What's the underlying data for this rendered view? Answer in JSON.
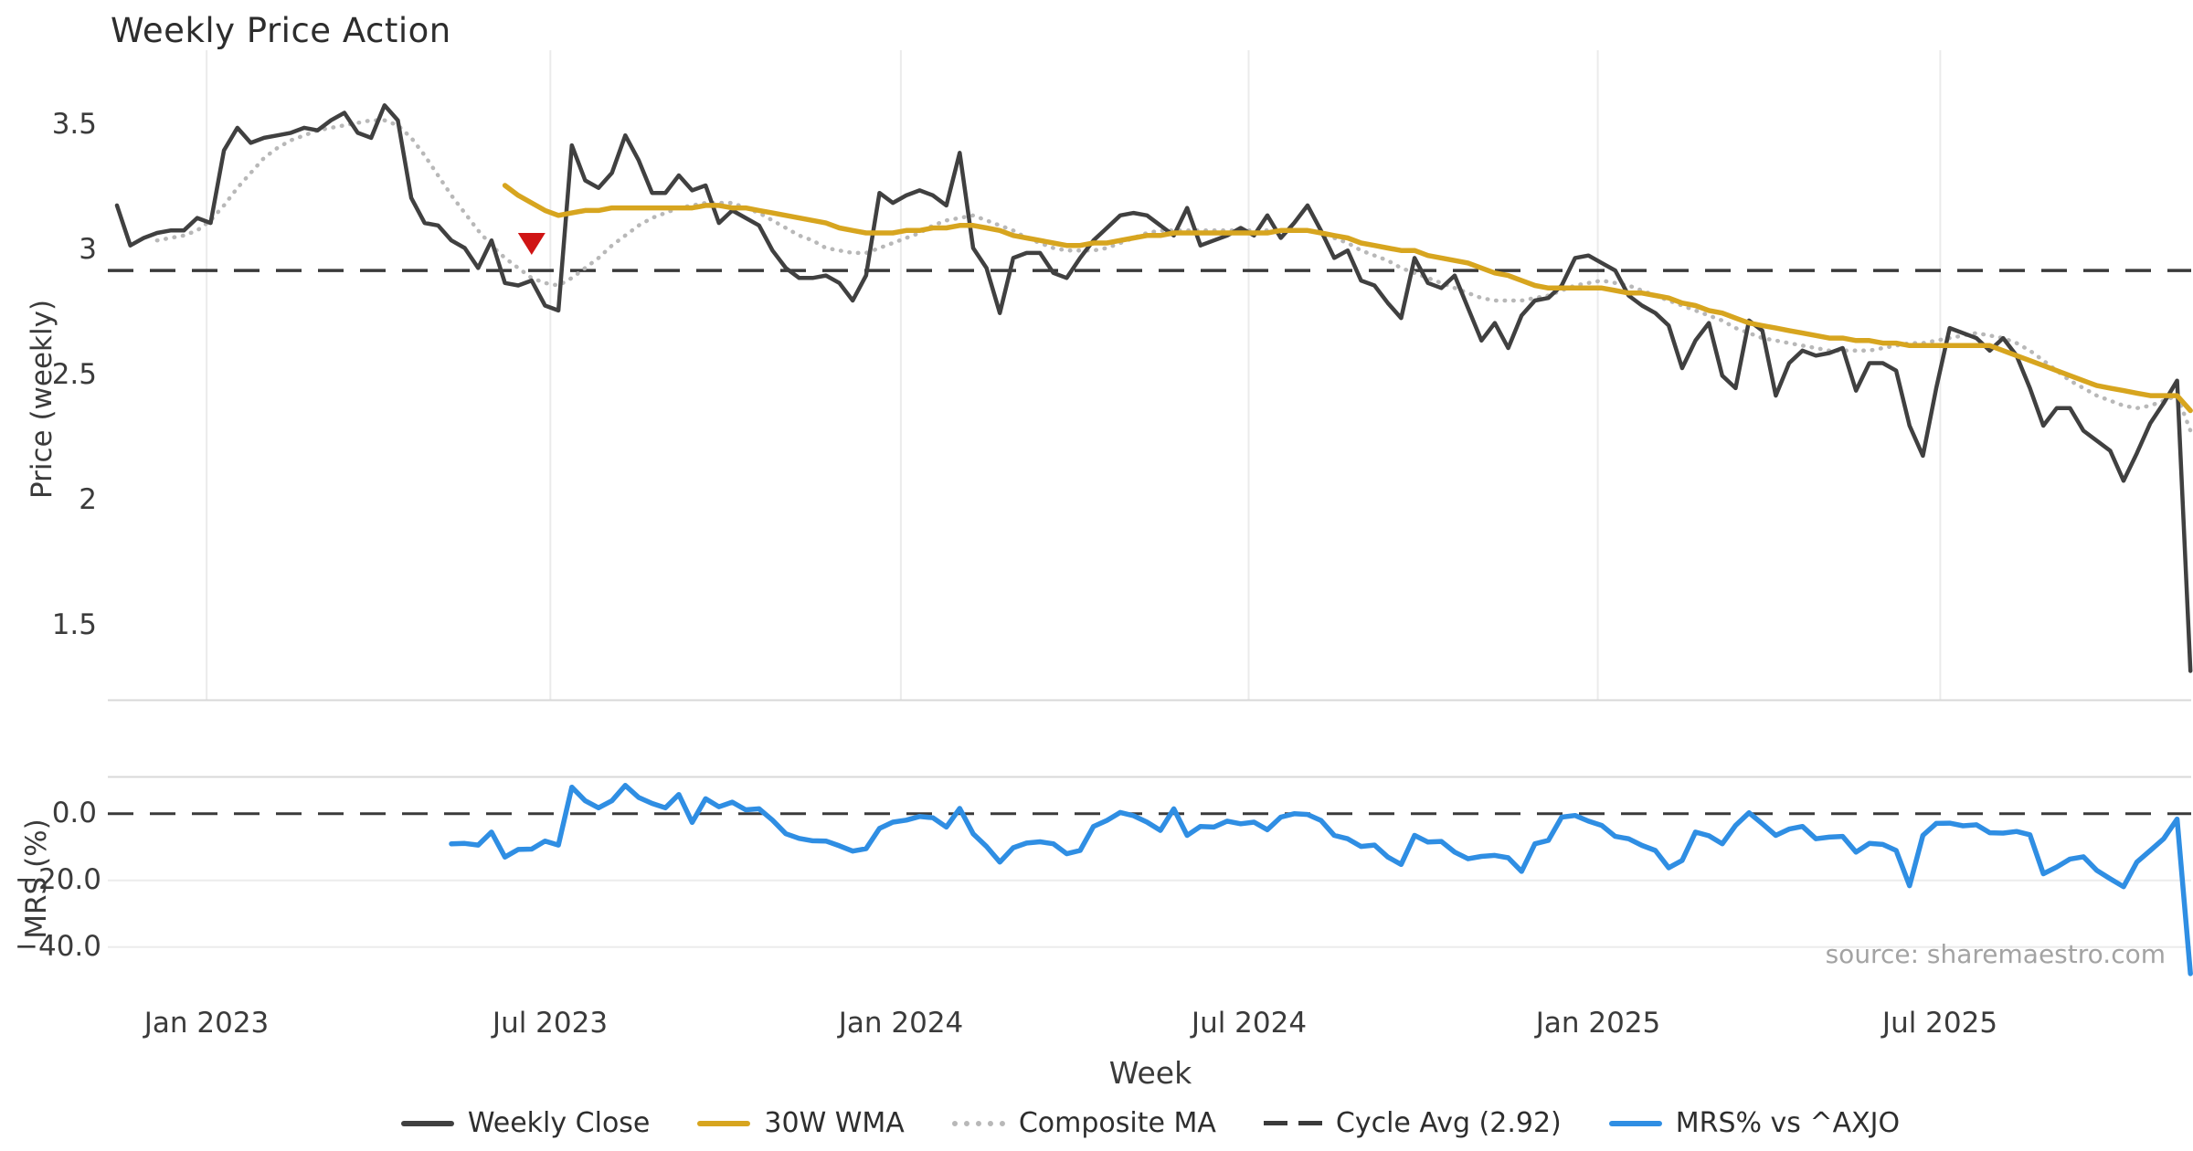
{
  "title": "Weekly Price Action",
  "source_note": "source: sharemaestro.com",
  "colors": {
    "weekly_close": "#404040",
    "wma": "#d7a51f",
    "composite": "#b8b8b8",
    "cycle": "#3a3a3a",
    "mrs": "#2f8ee3",
    "marker": "#cf1414",
    "grid": "#ebebeb",
    "spine": "#d8d8d8",
    "text": "#3b3b3b"
  },
  "chart_data": {
    "type": "line",
    "title": "Weekly Price Action",
    "xlabel": "Week",
    "x_is_weekly": true,
    "n_weeks": 156,
    "x_ticks": [
      {
        "label": "Jan 2023",
        "week": 6.7
      },
      {
        "label": "Jul 2023",
        "week": 32.4
      },
      {
        "label": "Jan 2024",
        "week": 58.6
      },
      {
        "label": "Jul 2024",
        "week": 84.6
      },
      {
        "label": "Jan 2025",
        "week": 110.7
      },
      {
        "label": "Jul 2025",
        "week": 136.3
      }
    ],
    "legend": [
      {
        "label": "Weekly Close",
        "swatch": "solid",
        "color_key": "weekly_close"
      },
      {
        "label": "30W WMA",
        "swatch": "solid",
        "color_key": "wma"
      },
      {
        "label": "Composite MA",
        "swatch": "dotted",
        "color_key": "composite"
      },
      {
        "label": "Cycle Avg (2.92)",
        "swatch": "dashed",
        "color_key": "cycle"
      },
      {
        "label": "MRS% vs ^AXJO",
        "swatch": "solid",
        "color_key": "mrs"
      }
    ],
    "panels": [
      {
        "ylabel": "Price (weekly)",
        "ylim": [
          1.205,
          3.8
        ],
        "y_ticks": [
          {
            "label": "3.5",
            "value": 3.5
          },
          {
            "label": "3",
            "value": 3.0
          },
          {
            "label": "2.5",
            "value": 2.5
          },
          {
            "label": "2",
            "value": 2.0
          },
          {
            "label": "1.5",
            "value": 1.5
          }
        ],
        "reference_line": {
          "label": "Cycle Avg (2.92)",
          "value": 2.92
        },
        "marker": {
          "type": "triangle-down",
          "week": 31,
          "value": 3.03
        },
        "series": [
          {
            "name": "Weekly Close",
            "values": [
              3.18,
              3.02,
              3.05,
              3.07,
              3.08,
              3.08,
              3.13,
              3.11,
              3.4,
              3.49,
              3.43,
              3.45,
              3.46,
              3.47,
              3.49,
              3.48,
              3.52,
              3.55,
              3.47,
              3.45,
              3.58,
              3.52,
              3.21,
              3.11,
              3.1,
              3.04,
              3.01,
              2.93,
              3.04,
              2.87,
              2.86,
              2.88,
              2.78,
              2.76,
              3.42,
              3.28,
              3.25,
              3.31,
              3.46,
              3.36,
              3.23,
              3.23,
              3.3,
              3.24,
              3.26,
              3.11,
              3.16,
              3.13,
              3.1,
              3.0,
              2.93,
              2.89,
              2.89,
              2.9,
              2.87,
              2.8,
              2.9,
              3.23,
              3.19,
              3.22,
              3.24,
              3.22,
              3.18,
              3.39,
              3.01,
              2.93,
              2.75,
              2.97,
              2.99,
              2.99,
              2.91,
              2.89,
              2.97,
              3.04,
              3.09,
              3.14,
              3.15,
              3.14,
              3.1,
              3.06,
              3.17,
              3.02,
              3.04,
              3.06,
              3.09,
              3.06,
              3.14,
              3.05,
              3.11,
              3.18,
              3.08,
              2.97,
              3.0,
              2.88,
              2.86,
              2.79,
              2.73,
              2.97,
              2.87,
              2.85,
              2.9,
              2.77,
              2.64,
              2.71,
              2.61,
              2.74,
              2.8,
              2.81,
              2.86,
              2.97,
              2.98,
              2.95,
              2.92,
              2.82,
              2.78,
              2.75,
              2.7,
              2.53,
              2.64,
              2.71,
              2.5,
              2.45,
              2.72,
              2.68,
              2.42,
              2.55,
              2.6,
              2.58,
              2.59,
              2.61,
              2.44,
              2.55,
              2.55,
              2.52,
              2.3,
              2.18,
              2.45,
              2.69,
              2.67,
              2.65,
              2.6,
              2.65,
              2.58,
              2.45,
              2.3,
              2.37,
              2.37,
              2.28,
              2.24,
              2.2,
              2.08,
              2.19,
              2.31,
              2.39,
              2.48,
              1.32
            ]
          },
          {
            "name": "30W WMA",
            "values": [
              null,
              null,
              null,
              null,
              null,
              null,
              null,
              null,
              null,
              null,
              null,
              null,
              null,
              null,
              null,
              null,
              null,
              null,
              null,
              null,
              null,
              null,
              null,
              null,
              null,
              null,
              null,
              null,
              null,
              3.26,
              3.22,
              3.19,
              3.16,
              3.14,
              3.15,
              3.16,
              3.16,
              3.17,
              3.17,
              3.17,
              3.17,
              3.17,
              3.17,
              3.17,
              3.18,
              3.18,
              3.17,
              3.17,
              3.16,
              3.15,
              3.14,
              3.13,
              3.12,
              3.11,
              3.09,
              3.08,
              3.07,
              3.07,
              3.07,
              3.08,
              3.08,
              3.09,
              3.09,
              3.1,
              3.1,
              3.09,
              3.08,
              3.06,
              3.05,
              3.04,
              3.03,
              3.02,
              3.02,
              3.03,
              3.03,
              3.04,
              3.05,
              3.06,
              3.06,
              3.07,
              3.07,
              3.07,
              3.07,
              3.07,
              3.07,
              3.07,
              3.07,
              3.08,
              3.08,
              3.08,
              3.07,
              3.06,
              3.05,
              3.03,
              3.02,
              3.01,
              3.0,
              3.0,
              2.98,
              2.97,
              2.96,
              2.95,
              2.93,
              2.91,
              2.9,
              2.88,
              2.86,
              2.85,
              2.85,
              2.85,
              2.85,
              2.85,
              2.84,
              2.83,
              2.83,
              2.82,
              2.81,
              2.79,
              2.78,
              2.76,
              2.75,
              2.73,
              2.71,
              2.7,
              2.69,
              2.68,
              2.67,
              2.66,
              2.65,
              2.65,
              2.64,
              2.64,
              2.63,
              2.63,
              2.62,
              2.62,
              2.62,
              2.62,
              2.62,
              2.62,
              2.62,
              2.6,
              2.58,
              2.56,
              2.54,
              2.52,
              2.5,
              2.48,
              2.46,
              2.45,
              2.44,
              2.43,
              2.42,
              2.42,
              2.42,
              2.36
            ]
          },
          {
            "name": "Composite MA",
            "values": [
              null,
              null,
              null,
              3.04,
              3.05,
              3.06,
              3.08,
              3.12,
              3.18,
              3.25,
              3.31,
              3.37,
              3.41,
              3.44,
              3.46,
              3.48,
              3.49,
              3.5,
              3.51,
              3.52,
              3.52,
              3.5,
              3.45,
              3.38,
              3.3,
              3.22,
              3.15,
              3.08,
              3.02,
              2.97,
              2.93,
              2.89,
              2.87,
              2.86,
              2.89,
              2.93,
              2.97,
              3.02,
              3.06,
              3.1,
              3.13,
              3.15,
              3.17,
              3.18,
              3.19,
              3.19,
              3.19,
              3.17,
              3.15,
              3.12,
              3.09,
              3.06,
              3.04,
              3.01,
              3.0,
              2.99,
              2.99,
              3.01,
              3.03,
              3.05,
              3.07,
              3.1,
              3.12,
              3.13,
              3.14,
              3.12,
              3.1,
              3.08,
              3.05,
              3.03,
              3.01,
              3.0,
              3.0,
              3.0,
              3.01,
              3.03,
              3.05,
              3.07,
              3.08,
              3.08,
              3.08,
              3.08,
              3.08,
              3.08,
              3.08,
              3.08,
              3.08,
              3.08,
              3.08,
              3.08,
              3.07,
              3.05,
              3.03,
              3.0,
              2.98,
              2.96,
              2.93,
              2.91,
              2.89,
              2.87,
              2.85,
              2.83,
              2.81,
              2.8,
              2.8,
              2.8,
              2.81,
              2.82,
              2.84,
              2.86,
              2.87,
              2.88,
              2.87,
              2.86,
              2.84,
              2.82,
              2.8,
              2.78,
              2.76,
              2.74,
              2.72,
              2.69,
              2.67,
              2.65,
              2.64,
              2.63,
              2.62,
              2.61,
              2.6,
              2.6,
              2.6,
              2.6,
              2.61,
              2.62,
              2.63,
              2.63,
              2.64,
              2.65,
              2.66,
              2.67,
              2.66,
              2.65,
              2.63,
              2.6,
              2.56,
              2.52,
              2.48,
              2.45,
              2.42,
              2.4,
              2.38,
              2.37,
              2.38,
              2.4,
              2.42,
              2.28
            ]
          }
        ]
      },
      {
        "ylabel": "MRS (%)",
        "ylim": [
          -50.5,
          11.2
        ],
        "y_ticks": [
          {
            "label": "0.0",
            "value": 0
          },
          {
            "label": "−20.0",
            "value": -20
          },
          {
            "label": "−40.0",
            "value": -40
          }
        ],
        "reference_line": {
          "label": "zero",
          "value": 0
        },
        "series": [
          {
            "name": "MRS% vs ^AXJO",
            "values": [
              null,
              null,
              null,
              null,
              null,
              null,
              null,
              null,
              null,
              null,
              null,
              null,
              null,
              null,
              null,
              null,
              null,
              null,
              null,
              null,
              null,
              null,
              null,
              null,
              null,
              -9.0,
              -8.9,
              -9.4,
              -5.5,
              -13.0,
              -10.7,
              -10.6,
              -8.2,
              -9.4,
              8.0,
              3.9,
              1.8,
              3.9,
              8.5,
              4.9,
              3.1,
              1.8,
              5.8,
              -2.6,
              4.5,
              2.1,
              3.5,
              1.2,
              1.5,
              -1.9,
              -6.0,
              -7.4,
              -8.1,
              -8.2,
              -9.6,
              -11.2,
              -10.5,
              -4.4,
              -2.5,
              -1.9,
              -0.8,
              -1.2,
              -4.0,
              1.6,
              -6.0,
              -9.8,
              -14.5,
              -10.2,
              -8.8,
              -8.4,
              -9.0,
              -12.0,
              -11.0,
              -3.8,
              -2.0,
              0.4,
              -0.6,
              -2.5,
              -5.0,
              1.5,
              -6.5,
              -3.8,
              -4.0,
              -2.2,
              -3.0,
              -2.5,
              -4.8,
              -1.0,
              0.0,
              -0.2,
              -2.0,
              -6.5,
              -7.5,
              -9.8,
              -9.4,
              -13.0,
              -15.2,
              -6.5,
              -8.5,
              -8.3,
              -11.5,
              -13.5,
              -12.8,
              -12.5,
              -13.2,
              -17.3,
              -9.0,
              -8.0,
              -1.0,
              -0.5,
              -2.2,
              -3.5,
              -6.8,
              -7.5,
              -9.5,
              -11.0,
              -16.2,
              -14.0,
              -5.5,
              -6.6,
              -9.0,
              -3.5,
              0.3,
              -3.0,
              -6.5,
              -4.6,
              -3.8,
              -7.5,
              -7.0,
              -6.8,
              -11.5,
              -8.9,
              -9.2,
              -11.0,
              -21.6,
              -6.5,
              -2.9,
              -2.8,
              -3.6,
              -3.3,
              -5.7,
              -5.8,
              -5.3,
              -6.3,
              -18.0,
              -16.0,
              -13.6,
              -12.9,
              -17.0,
              -19.5,
              -21.9,
              -14.5,
              -11.0,
              -7.5,
              -1.6,
              -48.0
            ]
          }
        ]
      }
    ]
  }
}
